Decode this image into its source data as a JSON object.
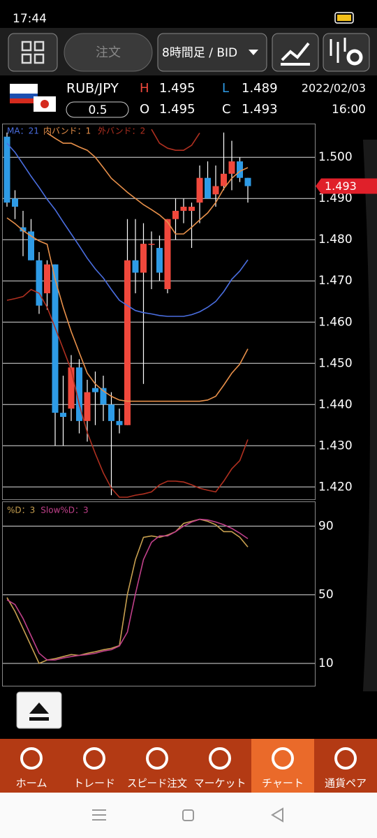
{
  "status_bar": {
    "time": "17:44"
  },
  "toolbar": {
    "order": "注文",
    "timeframe": "8時間足 / BID"
  },
  "quote": {
    "pair": "RUB/JPY",
    "spread": "0.5",
    "high_label": "H",
    "high": "1.495",
    "low_label": "L",
    "low": "1.489",
    "open_label": "O",
    "open": "1.495",
    "close_label": "C",
    "close": "1.493",
    "date": "2022/02/03",
    "time": "16:00"
  },
  "tabs": {
    "items": [
      "ホーム",
      "トレード",
      "スピード注文",
      "マーケット",
      "チャート",
      "通貨ペア"
    ],
    "active": 4
  },
  "chart_data": [
    {
      "type": "candlestick",
      "ylim": [
        1.417,
        1.508
      ],
      "grid": true,
      "yticks": [
        {
          "value": 1.5,
          "label": "1.500"
        },
        {
          "value": 1.49,
          "label": "1.490"
        },
        {
          "value": 1.48,
          "label": "1.480"
        },
        {
          "value": 1.47,
          "label": "1.470"
        },
        {
          "value": 1.46,
          "label": "1.460"
        },
        {
          "value": 1.45,
          "label": "1.450"
        },
        {
          "value": 1.44,
          "label": "1.440"
        },
        {
          "value": 1.43,
          "label": "1.430"
        },
        {
          "value": 1.42,
          "label": "1.420"
        }
      ],
      "up_color": "#f0483c",
      "down_color": "#2e9be6",
      "open": [
        1.505,
        1.49,
        1.483,
        1.482,
        1.475,
        1.467,
        1.474,
        1.438,
        1.439,
        1.449,
        1.436,
        1.444,
        1.444,
        1.44,
        1.436,
        1.435,
        1.475,
        1.472,
        1.479,
        1.478,
        1.468,
        1.485,
        1.487,
        1.487,
        1.489,
        1.495,
        1.491,
        1.493,
        1.496,
        1.499,
        1.495
      ],
      "high": [
        1.506,
        1.492,
        1.487,
        1.485,
        1.477,
        1.475,
        1.474,
        1.447,
        1.452,
        1.451,
        1.446,
        1.448,
        1.447,
        1.443,
        1.439,
        1.485,
        1.485,
        1.484,
        1.482,
        1.481,
        1.485,
        1.49,
        1.49,
        1.489,
        1.498,
        1.499,
        1.498,
        1.506,
        1.504,
        1.5,
        1.495
      ],
      "low": [
        1.488,
        1.485,
        1.476,
        1.475,
        1.462,
        1.463,
        1.43,
        1.43,
        1.436,
        1.433,
        1.431,
        1.435,
        1.436,
        1.418,
        1.433,
        1.435,
        1.467,
        1.445,
        1.468,
        1.47,
        1.467,
        1.48,
        1.484,
        1.478,
        1.484,
        1.49,
        1.488,
        1.492,
        1.492,
        1.494,
        1.489
      ],
      "close": [
        1.489,
        1.488,
        1.482,
        1.475,
        1.464,
        1.474,
        1.438,
        1.437,
        1.449,
        1.436,
        1.443,
        1.443,
        1.44,
        1.436,
        1.435,
        1.475,
        1.472,
        1.479,
        1.479,
        1.472,
        1.485,
        1.487,
        1.488,
        1.488,
        1.495,
        1.49,
        1.493,
        1.496,
        1.499,
        1.495,
        1.493
      ],
      "series": [
        {
          "name": "MA：21",
          "color": "#4a6ee0",
          "values": [
            1.5034,
            1.5012,
            1.4983,
            1.4954,
            1.4927,
            1.4898,
            1.4873,
            1.4843,
            1.4814,
            1.4785,
            1.4755,
            1.4729,
            1.4707,
            1.4679,
            1.4653,
            1.464,
            1.4628,
            1.4623,
            1.462,
            1.4616,
            1.4614,
            1.4614,
            1.4614,
            1.4618,
            1.4625,
            1.4636,
            1.465,
            1.4674,
            1.4704,
            1.4724,
            1.4751
          ]
        },
        {
          "name": "内バンド：1",
          "color": "#e8904a",
          "upper": [
            null,
            null,
            null,
            null,
            null,
            1.5059,
            1.5046,
            1.5034,
            1.5034,
            1.5025,
            1.5017,
            1.5,
            1.4975,
            1.4949,
            1.4932,
            1.4915,
            1.49,
            1.4885,
            1.4873,
            1.486,
            1.4843,
            1.4814,
            1.4814,
            1.483,
            1.4848,
            1.4865,
            1.489,
            1.4924,
            1.4949,
            1.4966,
            1.4975
          ],
          "lower": [
            1.4853,
            1.4839,
            1.4822,
            1.4809,
            1.4797,
            1.4789,
            1.4704,
            1.4636,
            1.4577,
            1.4526,
            1.4476,
            1.445,
            1.4433,
            1.442,
            1.4411,
            1.4408,
            1.4408,
            1.4408,
            1.4408,
            1.4408,
            1.4408,
            1.4408,
            1.4408,
            1.4408,
            1.4408,
            1.4411,
            1.442,
            1.4447,
            1.4476,
            1.4498,
            1.4535
          ]
        },
        {
          "name": "外バンド：2",
          "color": "#b03020",
          "upper": [
            null,
            null,
            null,
            null,
            null,
            null,
            null,
            null,
            null,
            null,
            null,
            null,
            null,
            null,
            null,
            null,
            null,
            null,
            1.5068,
            1.5034,
            1.5022,
            1.5017,
            1.5017,
            1.5029,
            1.5059,
            null,
            null,
            null,
            null,
            null,
            null
          ],
          "lower": [
            1.4653,
            1.4657,
            1.4662,
            1.4679,
            1.467,
            1.4636,
            1.4586,
            1.4535,
            1.4484,
            1.44,
            1.4332,
            1.4281,
            1.4234,
            1.4197,
            1.4175,
            1.4175,
            1.418,
            1.4183,
            1.4188,
            1.4205,
            1.4214,
            1.4214,
            1.4212,
            1.4205,
            1.4197,
            1.4192,
            1.4188,
            1.4214,
            1.4244,
            1.4264,
            1.4315
          ]
        }
      ],
      "price_marker": {
        "value": 1.493,
        "label": "1.493",
        "color": "#e0202a"
      }
    },
    {
      "type": "line",
      "ylim": [
        -3,
        104
      ],
      "grid": true,
      "yticks": [
        90,
        50,
        10
      ],
      "series": [
        {
          "name": "%D：3",
          "color": "#c8a050",
          "values": [
            48.4,
            40.3,
            30.3,
            20.2,
            10,
            12,
            12.8,
            14,
            15.2,
            14.7,
            15.9,
            16.8,
            18,
            18.8,
            20.4,
            50.3,
            70.5,
            83.5,
            84.3,
            83.5,
            84.8,
            86.8,
            91.6,
            92.8,
            94,
            92.8,
            90.8,
            86.8,
            86.8,
            83.5,
            77.9
          ]
        },
        {
          "name": "Slow%D：3",
          "color": "#c0408a",
          "values": [
            47.1,
            44.3,
            36.2,
            26.1,
            16,
            12,
            12,
            13.2,
            14,
            14.7,
            15.2,
            15.9,
            17.2,
            18,
            20.2,
            28.3,
            50.5,
            70.5,
            80.6,
            84.3,
            84.3,
            86.8,
            90,
            92.4,
            94,
            93.6,
            92.4,
            90.8,
            88.7,
            85.9,
            82.7
          ]
        }
      ]
    }
  ]
}
